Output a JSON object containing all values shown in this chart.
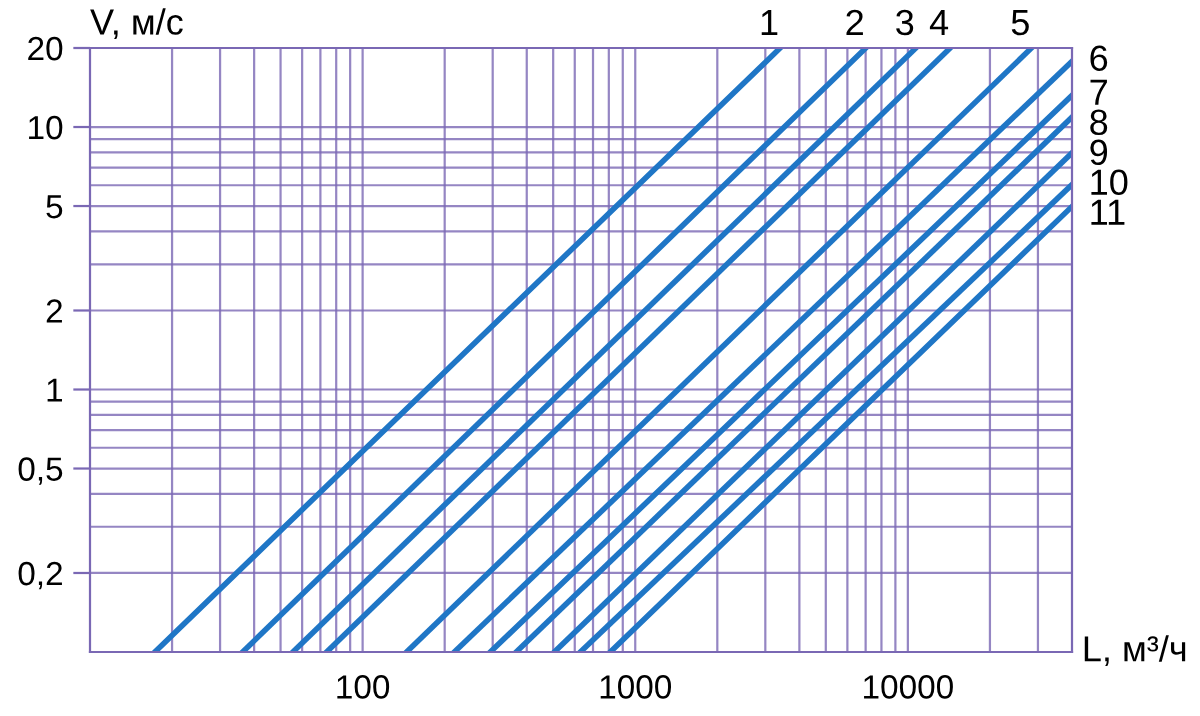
{
  "chart_data": {
    "type": "line",
    "xlabel": "L, м³/ч",
    "ylabel": "V, м/с",
    "log": "xy",
    "grid": true,
    "legend": false,
    "marker": "none",
    "line_style": "solid",
    "xlim": [
      10,
      40000
    ],
    "ylim": [
      0.1,
      20
    ],
    "xticks": [
      {
        "value": 20,
        "label": null
      },
      {
        "value": 30,
        "label": null
      },
      {
        "value": 40,
        "label": null
      },
      {
        "value": 50,
        "label": null
      },
      {
        "value": 60,
        "label": null
      },
      {
        "value": 70,
        "label": null
      },
      {
        "value": 80,
        "label": null
      },
      {
        "value": 90,
        "label": null
      },
      100,
      {
        "value": 200,
        "label": null
      },
      {
        "value": 300,
        "label": null
      },
      {
        "value": 400,
        "label": null
      },
      {
        "value": 500,
        "label": null
      },
      {
        "value": 600,
        "label": null
      },
      {
        "value": 700,
        "label": null
      },
      {
        "value": 800,
        "label": null
      },
      {
        "value": 900,
        "label": null
      },
      1000,
      {
        "value": 2000,
        "label": null
      },
      {
        "value": 3000,
        "label": null
      },
      {
        "value": 4000,
        "label": null
      },
      {
        "value": 5000,
        "label": null
      },
      {
        "value": 6000,
        "label": null
      },
      {
        "value": 7000,
        "label": null
      },
      {
        "value": 8000,
        "label": null
      },
      {
        "value": 9000,
        "label": null
      },
      10000,
      {
        "value": 20000,
        "label": null
      },
      {
        "value": 30000,
        "label": null
      }
    ],
    "yticks": [
      {
        "value": 0.2,
        "label": "0,2"
      },
      {
        "value": 0.3,
        "label": null
      },
      {
        "value": 0.4,
        "label": null
      },
      {
        "value": 0.5,
        "label": "0,5"
      },
      {
        "value": 0.6,
        "label": null
      },
      {
        "value": 0.7,
        "label": null
      },
      {
        "value": 0.8,
        "label": null
      },
      {
        "value": 0.9,
        "label": null
      },
      1,
      2,
      {
        "value": 3,
        "label": null
      },
      {
        "value": 4,
        "label": null
      },
      5,
      {
        "value": 6,
        "label": null
      },
      {
        "value": 7,
        "label": null
      },
      {
        "value": 8,
        "label": null
      },
      {
        "value": 9,
        "label": null
      },
      10,
      20
    ],
    "series": [
      {
        "name": "1",
        "color": "#1f76c6",
        "x": [
          17.3,
          3400
        ],
        "values": [
          0.1,
          20
        ]
      },
      {
        "name": "2",
        "color": "#1f76c6",
        "x": [
          36.3,
          7010
        ],
        "values": [
          0.1,
          20
        ]
      },
      {
        "name": "3",
        "color": "#1f76c6",
        "x": [
          55.5,
          10700
        ],
        "values": [
          0.1,
          20
        ]
      },
      {
        "name": "4",
        "color": "#1f76c6",
        "x": [
          73.8,
          14300
        ],
        "values": [
          0.1,
          20
        ]
      },
      {
        "name": "5",
        "color": "#1f76c6",
        "x": [
          145,
          28400
        ],
        "values": [
          0.1,
          20
        ]
      },
      {
        "name": "6",
        "color": "#1f76c6",
        "x": [
          217,
          40000
        ],
        "values": [
          0.1,
          17.8
        ]
      },
      {
        "name": "7",
        "color": "#1f76c6",
        "x": [
          294,
          40000
        ],
        "values": [
          0.1,
          13.2
        ]
      },
      {
        "name": "8",
        "color": "#1f76c6",
        "x": [
          366,
          40000
        ],
        "values": [
          0.1,
          10.9
        ]
      },
      {
        "name": "9",
        "color": "#1f76c6",
        "x": [
          505,
          40000
        ],
        "values": [
          0.1,
          7.97
        ]
      },
      {
        "name": "10",
        "color": "#1f76c6",
        "x": [
          629,
          40000
        ],
        "values": [
          0.1,
          6.03
        ]
      },
      {
        "name": "11",
        "color": "#1f76c6",
        "x": [
          810,
          40000
        ],
        "values": [
          0.1,
          4.98
        ]
      }
    ]
  }
}
